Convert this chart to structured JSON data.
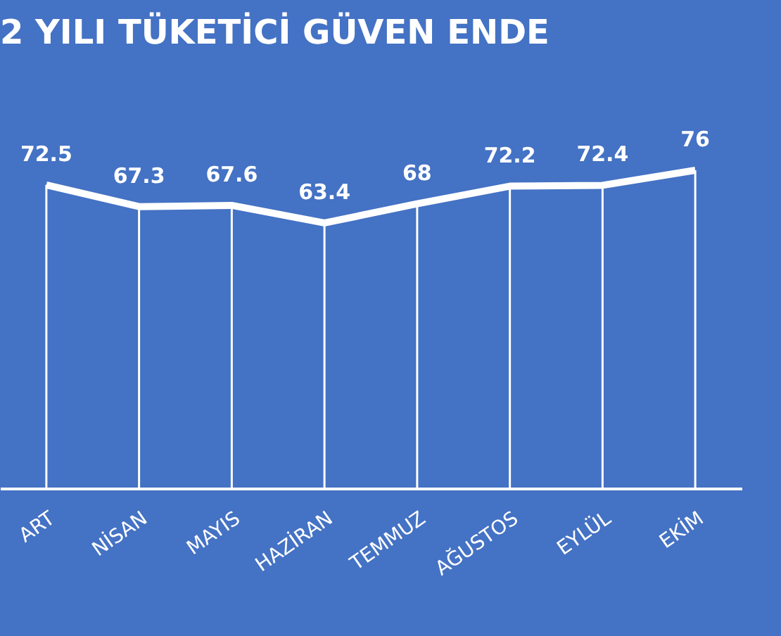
{
  "chart_data": {
    "type": "line",
    "title": "2 YILI TÜKETİCİ GÜVEN ENDE",
    "categories": [
      "ART",
      "NİSAN",
      "MAYIS",
      "HAZİRAN",
      "TEMMUZ",
      "AĞUSTOS",
      "EYLÜL",
      "EKİM"
    ],
    "values": [
      72.5,
      67.3,
      67.6,
      63.4,
      68,
      72.2,
      72.4,
      76
    ],
    "color": "#ffffff",
    "data_labels": true,
    "grid": "x",
    "marker": "none",
    "line_style": "solid"
  }
}
